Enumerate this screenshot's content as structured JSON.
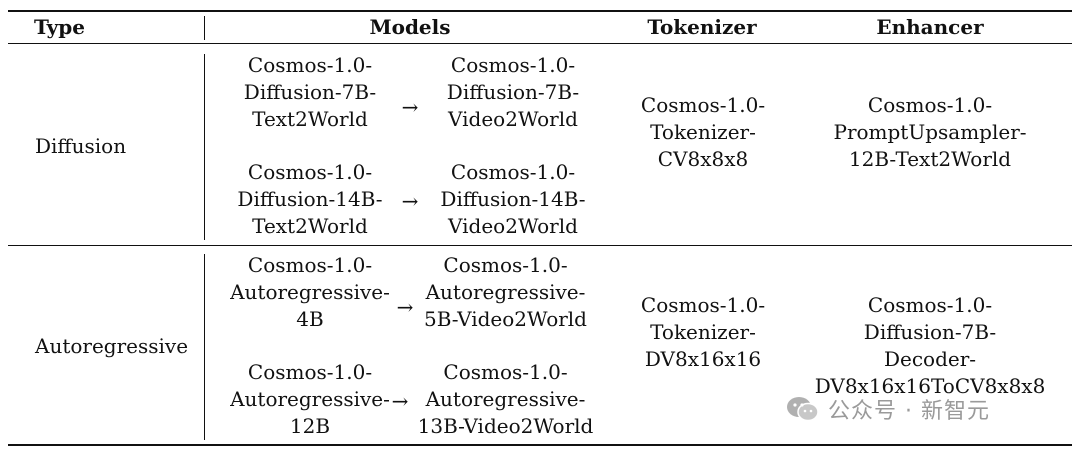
{
  "table": {
    "headers": {
      "type": "Type",
      "models": "Models",
      "tokenizer": "Tokenizer",
      "enhancer": "Enhancer"
    },
    "rows": [
      {
        "type": "Diffusion",
        "models": [
          {
            "from": [
              "Cosmos-1.0-",
              "Diffusion-7B-",
              "Text2World"
            ],
            "arrow": "→",
            "to": [
              "Cosmos-1.0-",
              "Diffusion-7B-",
              "Video2World"
            ]
          },
          {
            "from": [
              "Cosmos-1.0-",
              "Diffusion-14B-",
              "Text2World"
            ],
            "arrow": "→",
            "to": [
              "Cosmos-1.0-",
              "Diffusion-14B-",
              "Video2World"
            ]
          }
        ],
        "tokenizer": [
          "Cosmos-1.0-",
          "Tokenizer-",
          "CV8x8x8"
        ],
        "enhancer": [
          "Cosmos-1.0-",
          "PromptUpsampler-",
          "12B-Text2World"
        ]
      },
      {
        "type": "Autoregressive",
        "models": [
          {
            "from": [
              "Cosmos-1.0-",
              "Autoregressive-",
              "4B"
            ],
            "arrow": "→",
            "to": [
              "Cosmos-1.0-",
              "Autoregressive-",
              "5B-Video2World"
            ]
          },
          {
            "from": [
              "Cosmos-1.0-",
              "Autoregressive-",
              "12B"
            ],
            "arrow": "→",
            "to": [
              "Cosmos-1.0-",
              "Autoregressive-",
              "13B-Video2World"
            ]
          }
        ],
        "tokenizer": [
          "Cosmos-1.0-",
          "Tokenizer-",
          "DV8x16x16"
        ],
        "enhancer": [
          "Cosmos-1.0-",
          "Diffusion-7B-",
          "Decoder-",
          "DV8x16x16ToCV8x8x8"
        ]
      }
    ]
  },
  "watermark": {
    "icon": "wechat-icon",
    "text": "公众号 · 新智元",
    "color": "#9a9a9a"
  }
}
